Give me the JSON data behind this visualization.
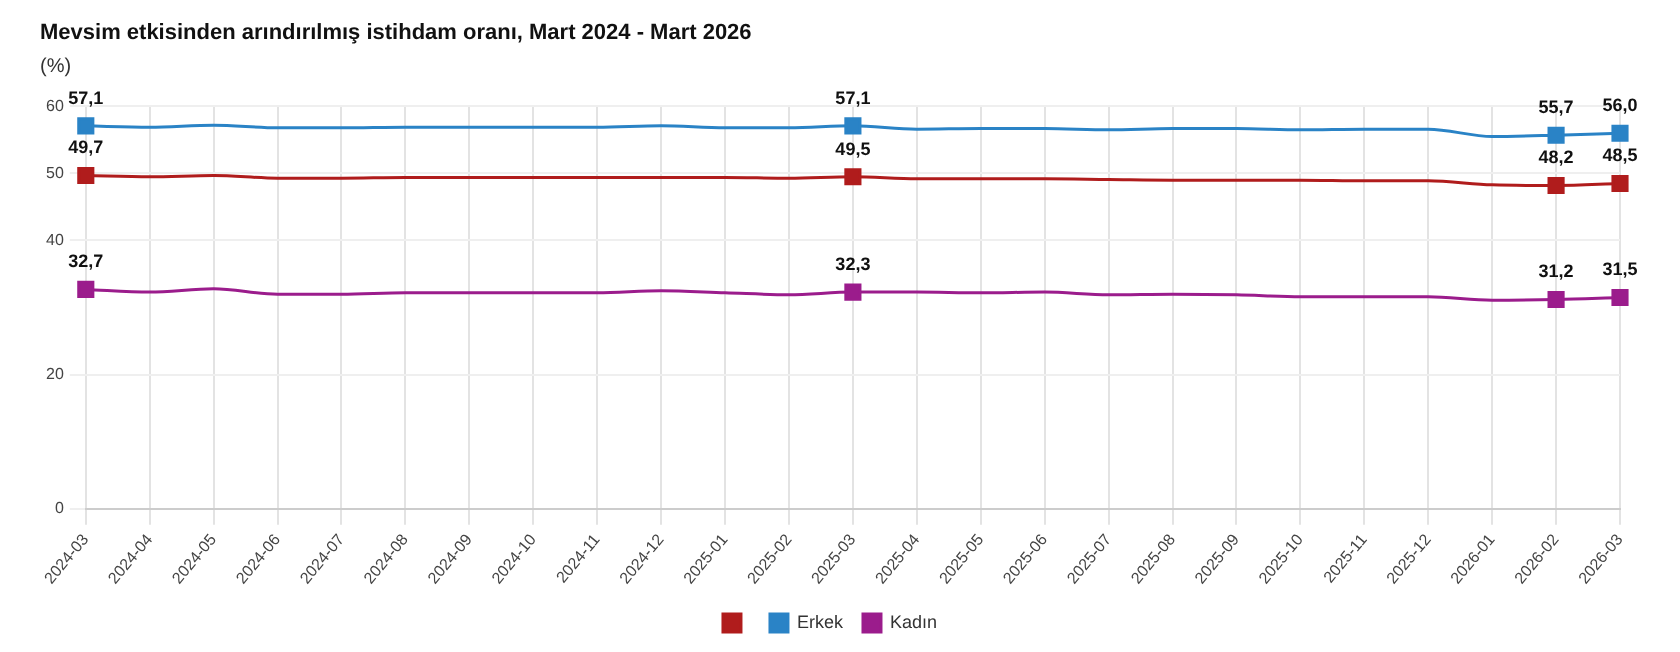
{
  "chart_data": {
    "type": "line",
    "title": "Mevsim etkisinden arındırılmış istihdam oranı, Mart 2024 - Mart 2026",
    "subtitle": "(%)",
    "categories": [
      "2024-03",
      "2024-04",
      "2024-05",
      "2024-06",
      "2024-07",
      "2024-08",
      "2024-09",
      "2024-10",
      "2024-11",
      "2024-12",
      "2025-01",
      "2025-02",
      "2025-03",
      "2025-04",
      "2025-05",
      "2025-06",
      "2025-07",
      "2025-08",
      "2025-09",
      "2025-10",
      "2025-11",
      "2025-12",
      "2026-01",
      "2026-02",
      "2026-03"
    ],
    "series": [
      {
        "color": "#b01c1c",
        "values": [
          49.7,
          49.5,
          49.7,
          49.3,
          49.3,
          49.4,
          49.4,
          49.4,
          49.4,
          49.4,
          49.4,
          49.3,
          49.5,
          49.2,
          49.2,
          49.2,
          49.1,
          49.0,
          49.0,
          49.0,
          48.9,
          48.9,
          48.3,
          48.2,
          48.5
        ],
        "value_labels": [
          "49,7",
          null,
          null,
          null,
          null,
          null,
          null,
          null,
          null,
          null,
          null,
          null,
          "49,5",
          null,
          null,
          null,
          null,
          null,
          null,
          null,
          null,
          null,
          null,
          "48,2",
          "48,5"
        ]
      },
      {
        "name": "Erkek",
        "color": "#2a83c6",
        "values": [
          57.1,
          56.9,
          57.2,
          56.8,
          56.8,
          56.9,
          56.9,
          56.9,
          56.9,
          57.1,
          56.8,
          56.8,
          57.1,
          56.6,
          56.7,
          56.7,
          56.5,
          56.7,
          56.7,
          56.5,
          56.6,
          56.6,
          55.5,
          55.7,
          56.0
        ],
        "value_labels": [
          "57,1",
          null,
          null,
          null,
          null,
          null,
          null,
          null,
          null,
          null,
          null,
          null,
          "57,1",
          null,
          null,
          null,
          null,
          null,
          null,
          null,
          null,
          null,
          null,
          "55,7",
          "56,0"
        ]
      },
      {
        "name": "Kadın",
        "color": "#9b1c8c",
        "values": [
          32.7,
          32.3,
          32.8,
          32.0,
          32.0,
          32.2,
          32.2,
          32.2,
          32.2,
          32.5,
          32.2,
          31.9,
          32.3,
          32.3,
          32.2,
          32.3,
          31.9,
          32.0,
          31.9,
          31.6,
          31.6,
          31.6,
          31.1,
          31.2,
          31.5
        ],
        "value_labels": [
          "32,7",
          null,
          null,
          null,
          null,
          null,
          null,
          null,
          null,
          null,
          null,
          null,
          "32,3",
          null,
          null,
          null,
          null,
          null,
          null,
          null,
          null,
          null,
          null,
          "31,2",
          "31,5"
        ]
      }
    ],
    "ylim": [
      0,
      60
    ],
    "yticks": [
      0,
      20,
      40,
      50,
      60
    ],
    "grid": true,
    "legend": "bottom",
    "line_style": "solid"
  }
}
